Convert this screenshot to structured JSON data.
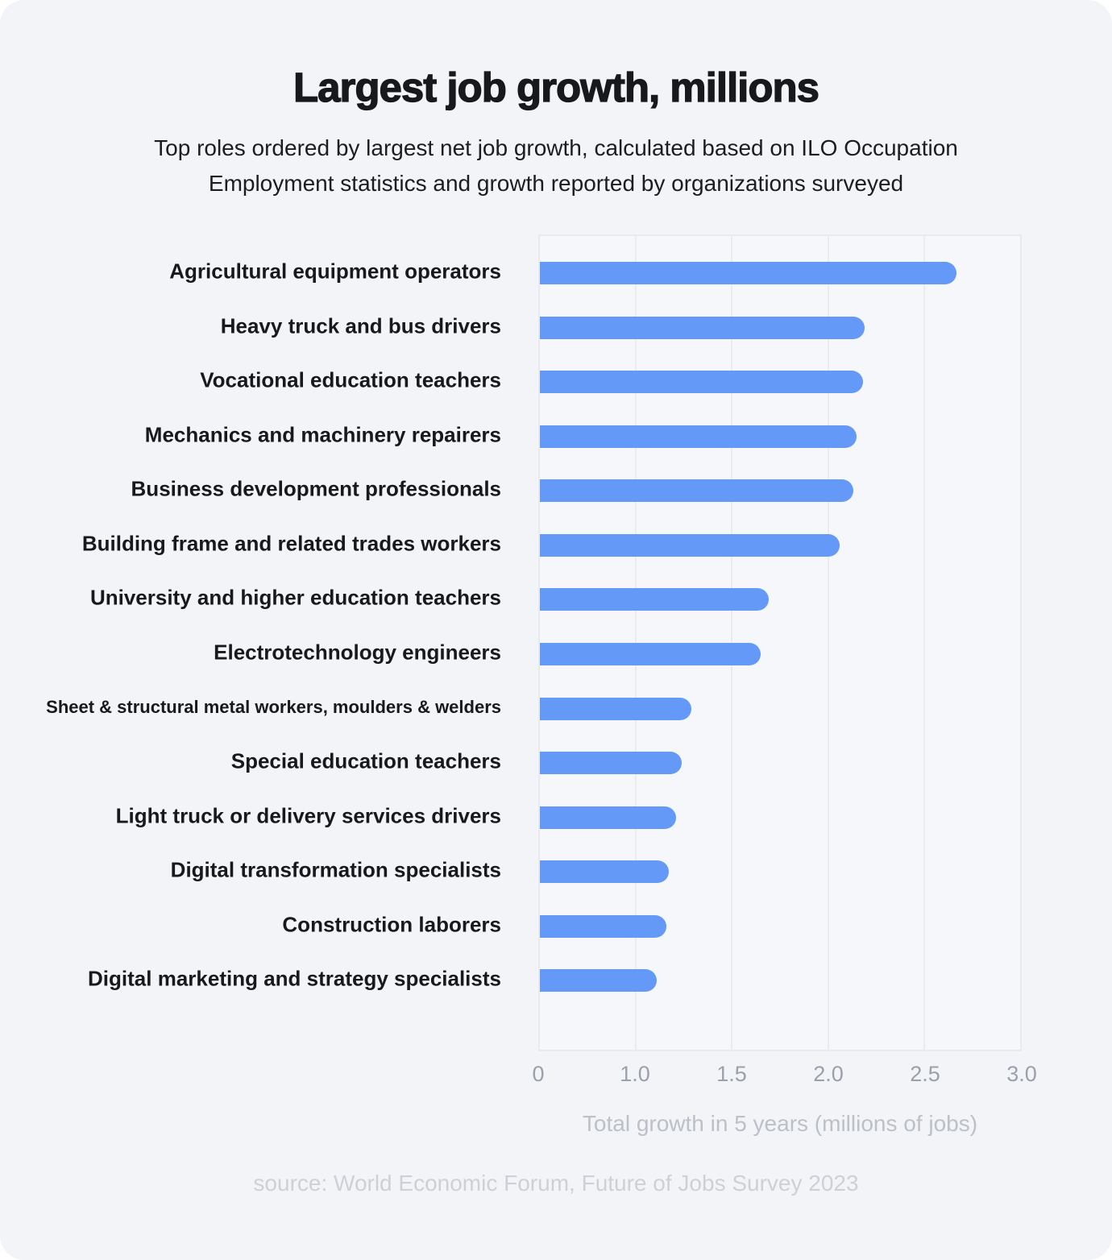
{
  "header": {
    "title": "Largest job growth, millions",
    "subtitle_line1": "Top roles ordered by largest net job growth, calculated based on ILO Occupation",
    "subtitle_line2": "Employment statistics and growth reported by organizations surveyed"
  },
  "chart_data": {
    "type": "bar",
    "orientation": "horizontal",
    "title": "Largest job growth, millions",
    "xlabel": "Total growth in 5 years (millions of jobs)",
    "ylabel": "",
    "categories": [
      "Agricultural equipment operators",
      "Heavy truck and bus drivers",
      "Vocational education teachers",
      "Mechanics and machinery repairers",
      "Business development professionals",
      "Building frame and related trades workers",
      "University and higher education teachers",
      "Electrotechnology engineers",
      "Sheet & structural metal workers, moulders & welders",
      "Special education teachers",
      "Light truck or delivery services drivers",
      "Digital transformation specialists",
      "Construction laborers",
      "Digital marketing and strategy specialists"
    ],
    "values": [
      2.67,
      2.19,
      2.18,
      2.15,
      2.13,
      2.06,
      1.69,
      1.65,
      1.29,
      1.24,
      1.21,
      1.17,
      1.16,
      1.11
    ],
    "x_tick_labels": [
      "0",
      "1.0",
      "1.5",
      "2.0",
      "2.5",
      "3.0"
    ],
    "x_tick_values": [
      0,
      1.0,
      1.5,
      2.0,
      2.5,
      3.0
    ],
    "axis_scale_note": "ticks equally spaced in pixels: the 0 to 1.0 gap equals each later 0.5 gap (non-linear scale)",
    "xlim": [
      0,
      3.0
    ],
    "grid": true,
    "legend": false,
    "bar_color": "#6499f7"
  },
  "footer": {
    "source": "source: World Economic Forum, Future of Jobs Survey 2023"
  },
  "colors": {
    "card_background": "#f3f4f7",
    "plot_background": "#f6f7fa",
    "plot_border": "#e8eaef",
    "gridline": "#eaecf0",
    "bar": "#6499f7",
    "title_text": "#17191d",
    "label_text": "#17191d",
    "tick_text": "#9aa1ab",
    "axis_title_text": "#bcc1c9",
    "source_text": "#cdd1d7"
  }
}
